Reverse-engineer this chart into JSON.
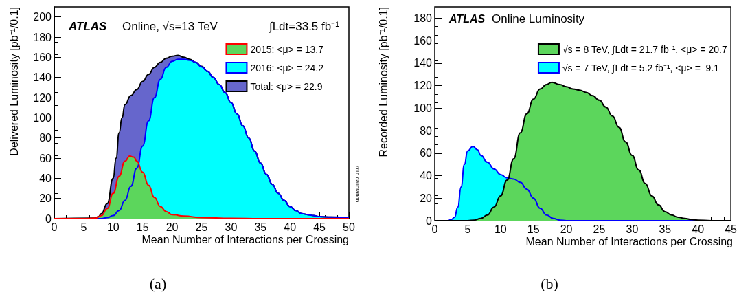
{
  "chart_data": [
    {
      "type": "area",
      "xlabel": "Mean Number of Interactions per Crossing",
      "ylabel": "Delivered Luminosity [pb⁻¹/0.1]",
      "xlim": [
        0,
        50
      ],
      "xticks": [
        0,
        5,
        10,
        15,
        20,
        25,
        30,
        35,
        40,
        45,
        50
      ],
      "ylim": [
        0,
        210
      ],
      "yticks": [
        0,
        20,
        40,
        60,
        80,
        100,
        120,
        140,
        160,
        180,
        200
      ],
      "grid": false,
      "legend": "top right",
      "annotations": [
        "ATLAS",
        "Online, √s=13 TeV",
        "∫Ldt=33.5 fb⁻¹",
        "7/16 calibration",
        "(a)"
      ],
      "series": [
        {
          "name": "2015: <μ> = 13.7",
          "color": "#5cd65c",
          "x": [
            0,
            5,
            7,
            8,
            9,
            10,
            11,
            12,
            12.8,
            13.5,
            14,
            15,
            16,
            17,
            18,
            19,
            20,
            22,
            25,
            30,
            35,
            50
          ],
          "values": [
            0,
            0,
            0.5,
            3,
            10,
            25,
            42,
            57,
            62,
            61,
            57,
            46,
            33,
            21,
            12,
            7,
            4,
            2.5,
            1,
            0.3,
            0,
            0
          ]
        },
        {
          "name": "2016: <μ> = 24.2",
          "color": "#00ffff",
          "x": [
            0,
            8,
            9,
            10,
            11,
            12,
            13,
            14,
            15,
            16,
            17,
            18,
            19,
            20,
            21,
            22,
            23,
            24,
            25,
            26,
            27,
            28,
            29,
            30,
            31,
            32,
            33,
            34,
            35,
            36,
            37,
            38,
            39,
            40,
            41,
            42,
            43,
            44,
            45,
            47,
            50
          ],
          "values": [
            0,
            0,
            1,
            3,
            8,
            18,
            32,
            50,
            72,
            97,
            120,
            138,
            150,
            156,
            158,
            158,
            157,
            155,
            150.5,
            146,
            140,
            133,
            125,
            115,
            104,
            92,
            80,
            67,
            55,
            44,
            34,
            25,
            18,
            12,
            8,
            5,
            4,
            3,
            2,
            1.5,
            1
          ]
        },
        {
          "name": "Total: <μ> = 22.9",
          "color": "#6666cc",
          "x": [
            0,
            7,
            7.5,
            8,
            9,
            10,
            10.5,
            11,
            11.5,
            12,
            13,
            14,
            15,
            16,
            17,
            18,
            19,
            20,
            21,
            22,
            23,
            24,
            25,
            26,
            27,
            28,
            29,
            30,
            31,
            32,
            33,
            34,
            35,
            36,
            37,
            38,
            39,
            40,
            41,
            42,
            43,
            44,
            45,
            47,
            50
          ],
          "values": [
            0,
            0.5,
            2,
            5,
            15,
            40,
            60,
            85,
            100,
            113,
            122,
            128,
            136,
            143,
            150,
            155,
            159,
            161,
            162,
            160,
            158,
            155,
            151,
            146,
            140,
            133,
            125,
            115,
            104,
            92,
            80,
            67,
            55,
            44,
            34,
            25,
            18,
            12,
            8,
            5,
            4,
            3,
            2,
            1.5,
            1
          ]
        }
      ]
    },
    {
      "type": "area",
      "xlabel": "Mean Number of Interactions per Crossing",
      "ylabel": "Recorded Luminosity [pb⁻¹/0.1]",
      "xlim": [
        0,
        45
      ],
      "xticks": [
        0,
        5,
        10,
        15,
        20,
        25,
        30,
        35,
        40,
        45
      ],
      "ylim": [
        0,
        190
      ],
      "yticks": [
        0,
        20,
        40,
        60,
        80,
        100,
        120,
        140,
        160,
        180
      ],
      "grid": false,
      "legend": "top right",
      "annotations": [
        "ATLAS",
        "Online Luminosity",
        "(b)"
      ],
      "series": [
        {
          "name": "√s = 8 TeV, ∫Ldt = 21.7 fb⁻¹, <μ> = 20.7",
          "color": "#5cd65c",
          "x": [
            0,
            5,
            6,
            7,
            8,
            9,
            10,
            11,
            12,
            13,
            14,
            15,
            16,
            17,
            17.8,
            19,
            20,
            21,
            22,
            23,
            24,
            25,
            26,
            27,
            28,
            29,
            30,
            31,
            32,
            33,
            34,
            35,
            36,
            37,
            38,
            39,
            40,
            42,
            45
          ],
          "values": [
            0,
            0,
            0.5,
            2,
            5,
            12,
            22,
            36,
            55,
            78,
            95,
            108,
            117,
            121,
            123,
            121,
            119,
            117,
            116,
            114,
            111,
            107,
            101,
            93,
            83,
            70,
            58,
            45,
            33,
            22,
            14,
            8,
            5,
            3,
            2,
            1,
            0.5,
            0,
            0
          ]
        },
        {
          "name": "√s = 7 TeV, ∫Ldt = 5.2 fb⁻¹, <μ> =  9.1",
          "color": "#00ffff",
          "x": [
            0,
            2,
            2.5,
            3,
            3.5,
            4,
            4.5,
            5,
            5.8,
            6.5,
            7,
            8,
            9,
            10,
            11,
            12,
            13,
            14,
            15,
            16,
            17,
            18,
            19,
            20,
            45
          ],
          "values": [
            0,
            0,
            1,
            3,
            12,
            30,
            50,
            62,
            66,
            63,
            58,
            52,
            46,
            41,
            38,
            37,
            34,
            28,
            20,
            11,
            5,
            2,
            0.5,
            0,
            0
          ]
        }
      ]
    }
  ]
}
